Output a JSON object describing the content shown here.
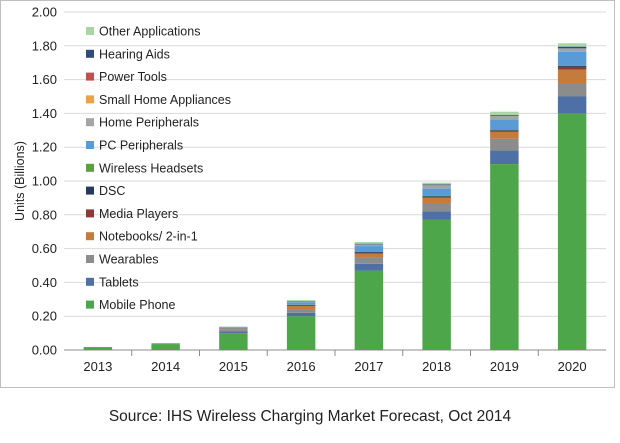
{
  "source_note": "Source: IHS Wireless Charging Market Forecast, Oct 2014",
  "chart_data": {
    "type": "bar",
    "stacked": true,
    "ylabel": "Units (Billions)",
    "xlabel": "",
    "ylim": [
      0,
      2.0
    ],
    "yticks": [
      "0.00",
      "0.20",
      "0.40",
      "0.60",
      "0.80",
      "1.00",
      "1.20",
      "1.40",
      "1.60",
      "1.80",
      "2.00"
    ],
    "categories": [
      "2013",
      "2014",
      "2015",
      "2016",
      "2017",
      "2018",
      "2019",
      "2020"
    ],
    "grid": true,
    "legend_position": "top-left",
    "series": [
      {
        "name": "Mobile Phone",
        "color": "#4ea64a",
        "values": [
          0.015,
          0.035,
          0.1,
          0.2,
          0.47,
          0.77,
          1.1,
          1.4
        ]
      },
      {
        "name": "Tablets",
        "color": "#4f6fa7",
        "values": [
          0.002,
          0.003,
          0.01,
          0.02,
          0.04,
          0.05,
          0.08,
          0.1
        ]
      },
      {
        "name": "Wearables",
        "color": "#8c8c8c",
        "values": [
          0.001,
          0.001,
          0.01,
          0.02,
          0.04,
          0.05,
          0.07,
          0.08
        ]
      },
      {
        "name": "Notebooks/ 2-in-1",
        "color": "#c47b3c",
        "values": [
          0,
          0.001,
          0.005,
          0.02,
          0.02,
          0.03,
          0.04,
          0.08
        ]
      },
      {
        "name": "Media Players",
        "color": "#8b3a3a",
        "values": [
          0,
          0,
          0.002,
          0.003,
          0.005,
          0.005,
          0.005,
          0.01
        ]
      },
      {
        "name": "DSC",
        "color": "#243b5e",
        "values": [
          0,
          0,
          0.001,
          0.003,
          0.005,
          0.005,
          0.005,
          0.01
        ]
      },
      {
        "name": "Wireless Headsets",
        "color": "#5f9e3f",
        "values": [
          0,
          0,
          0.001,
          0.002,
          0.005,
          0.005,
          0.005,
          0.005
        ]
      },
      {
        "name": "PC Peripherals",
        "color": "#5b9bd5",
        "values": [
          0,
          0,
          0.005,
          0.015,
          0.03,
          0.04,
          0.06,
          0.08
        ]
      },
      {
        "name": "Home Peripherals",
        "color": "#a5a5a5",
        "values": [
          0,
          0,
          0.002,
          0.005,
          0.01,
          0.02,
          0.02,
          0.02
        ]
      },
      {
        "name": "Small Home Appliances",
        "color": "#f0a04b",
        "values": [
          0,
          0,
          0,
          0,
          0,
          0,
          0,
          0
        ]
      },
      {
        "name": "Power Tools",
        "color": "#c0504d",
        "values": [
          0,
          0,
          0,
          0,
          0,
          0,
          0,
          0
        ]
      },
      {
        "name": "Hearing Aids",
        "color": "#2f4b7c",
        "values": [
          0,
          0,
          0.001,
          0.002,
          0.004,
          0.005,
          0.005,
          0.01
        ]
      },
      {
        "name": "Other Applications",
        "color": "#a9d6a4",
        "values": [
          0,
          0,
          0.001,
          0.005,
          0.01,
          0.01,
          0.02,
          0.02
        ]
      }
    ]
  }
}
